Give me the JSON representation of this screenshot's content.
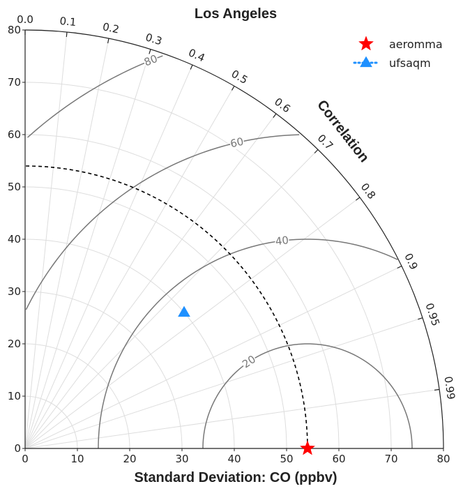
{
  "chart_data": {
    "type": "scatter",
    "diagram": "taylor",
    "title": "Los Angeles",
    "xlabel": "Standard Deviation: CO (ppbv)",
    "ylabel": "",
    "corr_label": "Correlation",
    "std_range": [
      0,
      80
    ],
    "std_ticks": [
      0,
      10,
      20,
      30,
      40,
      50,
      60,
      70,
      80
    ],
    "reference_std": 54,
    "corr_ticks": [
      0.0,
      0.1,
      0.2,
      0.3,
      0.4,
      0.5,
      0.6,
      0.7,
      0.8,
      0.9,
      0.95,
      0.99
    ],
    "corr_tick_labels": [
      "0.0",
      "0.1",
      "0.2",
      "0.3",
      "0.4",
      "0.5",
      "0.6",
      "0.7",
      "0.8",
      "0.9",
      "0.95",
      "0.99"
    ],
    "rms_contours": [
      20,
      40,
      60,
      80
    ],
    "rms_labels": [
      "20",
      "40",
      "60",
      "80"
    ],
    "grid": true,
    "legend_position": "top-right",
    "series": [
      {
        "name": "aeromma",
        "marker": "star",
        "color": "#ff0000",
        "std": 54,
        "corr": 1.0
      },
      {
        "name": "ufsaqm",
        "marker": "triangle",
        "color": "#1e90ff",
        "std": 40.0,
        "corr": 0.76
      }
    ]
  }
}
